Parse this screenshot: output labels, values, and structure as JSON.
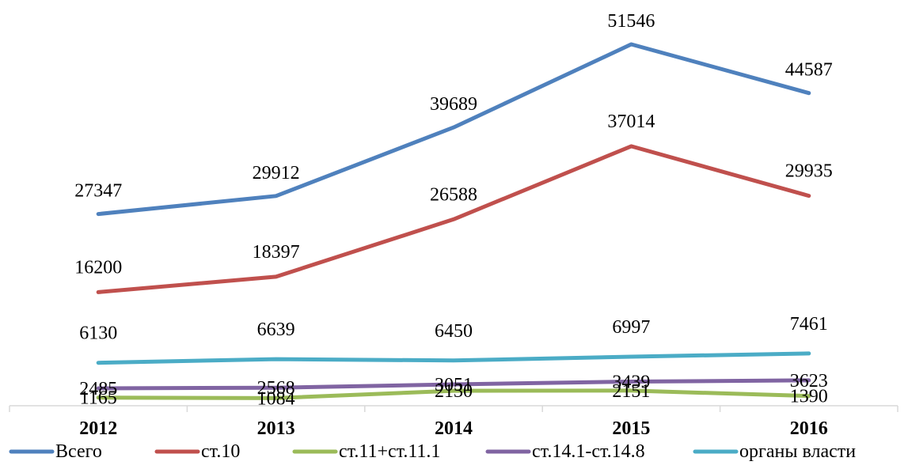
{
  "chart_data": {
    "type": "line",
    "categories": [
      "2012",
      "2013",
      "2014",
      "2015",
      "2016"
    ],
    "series": [
      {
        "name": "Всего",
        "values": [
          27347,
          29912,
          39689,
          51546,
          44587
        ],
        "color": "#4f81bd"
      },
      {
        "name": "ст.10",
        "values": [
          16200,
          18397,
          26588,
          37014,
          29935
        ],
        "color": "#c0504d"
      },
      {
        "name": "ст.11+ст.11.1",
        "values": [
          1165,
          1084,
          2130,
          2151,
          1390
        ],
        "color": "#9bbb59"
      },
      {
        "name": "ст.14.1-ст.14.8",
        "values": [
          2485,
          2568,
          3051,
          3439,
          3623
        ],
        "color": "#8064a2"
      },
      {
        "name": "органы власти",
        "values": [
          6130,
          6639,
          6450,
          6997,
          7461
        ],
        "color": "#4bacc6"
      }
    ],
    "title": "",
    "xlabel": "",
    "ylabel": "",
    "ylim": [
      0,
      52000
    ],
    "grid": false,
    "legend_position": "bottom"
  }
}
